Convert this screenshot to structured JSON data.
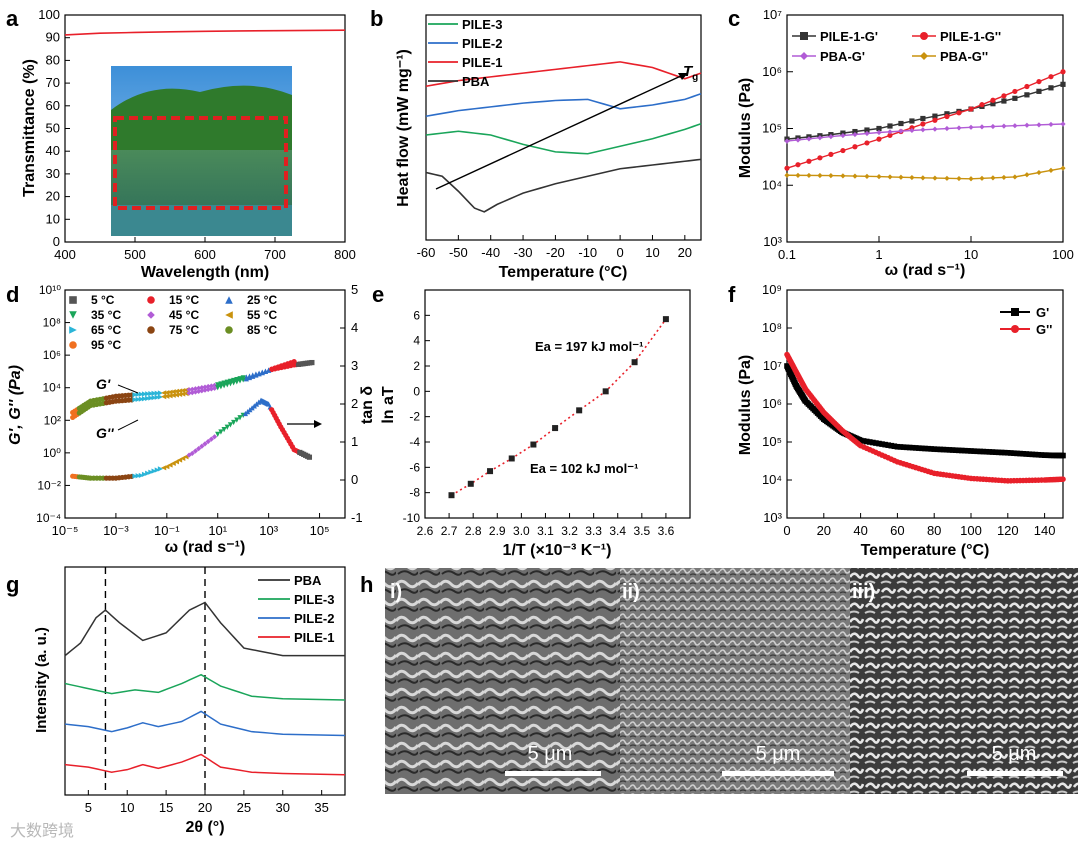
{
  "watermark": "大数跨境",
  "chart_data": [
    {
      "panel": "a",
      "type": "line",
      "xlabel": "Wavelength (nm)",
      "ylabel": "Transmittance (%)",
      "xlim": [
        400,
        800
      ],
      "ylim": [
        0,
        100
      ],
      "xticks": [
        "400",
        "500",
        "600",
        "700",
        "800"
      ],
      "yticks": [
        "0",
        "10",
        "20",
        "30",
        "40",
        "50",
        "60",
        "70",
        "80",
        "90",
        "100"
      ],
      "series": [
        {
          "name": "Transmittance",
          "color": "#e8202a",
          "x": [
            400,
            450,
            500,
            550,
            600,
            650,
            700,
            750,
            800
          ],
          "y": [
            91.2,
            92.0,
            92.3,
            92.6,
            92.8,
            93.0,
            93.1,
            93.2,
            93.3
          ]
        }
      ],
      "inset": "transparent film over landscape photo"
    },
    {
      "panel": "b",
      "type": "line",
      "xlabel": "Temperature (°C)",
      "ylabel": "Heat flow (mW mg⁻¹)",
      "xlim": [
        -60,
        25
      ],
      "xticks": [
        "-60",
        "-50",
        "-40",
        "-30",
        "-20",
        "-10",
        "0",
        "10",
        "20"
      ],
      "annotation": "Tg",
      "series": [
        {
          "name": "PILE-3",
          "color": "#1aa55a",
          "x": [
            -60,
            -50,
            -40,
            -30,
            -20,
            -10,
            0,
            10,
            20,
            25
          ],
          "y": [
            3.3,
            3.4,
            3.3,
            3.05,
            2.85,
            2.8,
            3.0,
            3.2,
            3.45,
            3.6
          ]
        },
        {
          "name": "PILE-2",
          "color": "#2d6ec9",
          "x": [
            -60,
            -50,
            -40,
            -30,
            -20,
            -10,
            0,
            10,
            20,
            25
          ],
          "y": [
            3.8,
            3.95,
            4.05,
            4.15,
            4.22,
            4.25,
            4.0,
            4.1,
            4.25,
            4.4
          ]
        },
        {
          "name": "PILE-1",
          "color": "#e8202a",
          "x": [
            -60,
            -50,
            -40,
            -30,
            -20,
            -10,
            0,
            10,
            20,
            25
          ],
          "y": [
            4.6,
            4.75,
            4.85,
            4.95,
            5.05,
            5.15,
            5.25,
            5.1,
            4.8,
            4.95
          ]
        },
        {
          "name": "PBA",
          "color": "#333333",
          "x": [
            -60,
            -55,
            -50,
            -45,
            -42,
            -38,
            -30,
            -20,
            -10,
            0,
            10,
            20,
            25
          ],
          "y": [
            2.3,
            2.2,
            1.8,
            1.35,
            1.25,
            1.45,
            1.75,
            2.0,
            2.2,
            2.4,
            2.5,
            2.6,
            2.65
          ]
        }
      ]
    },
    {
      "panel": "c",
      "type": "line",
      "xlabel": "ω (rad s⁻¹)",
      "ylabel": "Modulus (Pa)",
      "xscale": "log",
      "yscale": "log",
      "xlim": [
        0.1,
        100
      ],
      "ylim": [
        1000,
        10000000
      ],
      "xticks": [
        "0.1",
        "1",
        "10",
        "100"
      ],
      "yticks": [
        "10³",
        "10⁴",
        "10⁵",
        "10⁶",
        "10⁷"
      ],
      "series": [
        {
          "name": "PILE-1-G'",
          "color": "#333333",
          "marker": "square",
          "x": [
            0.1,
            0.3,
            1,
            3,
            10,
            30,
            100
          ],
          "y": [
            65000,
            78000,
            100000,
            150000,
            220000,
            340000,
            600000
          ]
        },
        {
          "name": "PILE-1-G''",
          "color": "#e8202a",
          "marker": "circle",
          "x": [
            0.1,
            0.3,
            1,
            3,
            10,
            30,
            100
          ],
          "y": [
            20000,
            35000,
            65000,
            120000,
            220000,
            450000,
            1000000
          ]
        },
        {
          "name": "PBA-G'",
          "color": "#b15cd6",
          "marker": "diamond",
          "x": [
            0.1,
            0.3,
            1,
            3,
            10,
            30,
            100
          ],
          "y": [
            60000,
            72000,
            85000,
            95000,
            105000,
            112000,
            120000
          ]
        },
        {
          "name": "PBA-G''",
          "color": "#c9920e",
          "marker": "diamond",
          "x": [
            0.1,
            0.3,
            1,
            3,
            10,
            30,
            100
          ],
          "y": [
            15000,
            14800,
            14200,
            13500,
            13000,
            14000,
            20000
          ]
        }
      ]
    },
    {
      "panel": "d",
      "type": "scatter",
      "xlabel": "ω (rad s⁻¹)",
      "ylabel": "G', G'' (Pa)",
      "y2label": "tan δ",
      "xscale": "log",
      "yscale": "log",
      "xlim": [
        1e-05,
        1000000
      ],
      "ylim": [
        0.0001,
        10000000000
      ],
      "y2lim": [
        -1,
        5
      ],
      "xticks": [
        "10⁻⁵",
        "10⁻³",
        "10⁻¹",
        "10¹",
        "10³",
        "10⁵"
      ],
      "yticks": [
        "10⁻⁴",
        "10⁻²",
        "10⁰",
        "10²",
        "10⁴",
        "10⁶",
        "10⁸",
        "10¹⁰"
      ],
      "y2ticks": [
        "-1",
        "0",
        "1",
        "2",
        "3",
        "4",
        "5"
      ],
      "legend": [
        {
          "label": "5 °C",
          "color": "#555555",
          "marker": "square"
        },
        {
          "label": "15 °C",
          "color": "#e8202a",
          "marker": "circle"
        },
        {
          "label": "25 °C",
          "color": "#2d6ec9",
          "marker": "triangle"
        },
        {
          "label": "35 °C",
          "color": "#1aa55a",
          "marker": "triangle-down"
        },
        {
          "label": "45 °C",
          "color": "#b15cd6",
          "marker": "diamond"
        },
        {
          "label": "55 °C",
          "color": "#c9920e",
          "marker": "triangle-left"
        },
        {
          "label": "65 °C",
          "color": "#2bb5d8",
          "marker": "triangle-right"
        },
        {
          "label": "75 °C",
          "color": "#8b4513",
          "marker": "circle"
        },
        {
          "label": "85 °C",
          "color": "#6b8e23",
          "marker": "star"
        },
        {
          "label": "95 °C",
          "color": "#f07020",
          "marker": "circle"
        }
      ],
      "labels": [
        "G'",
        "G''"
      ],
      "series": [
        {
          "name": "G'",
          "x": [
            2e-05,
            0.0001,
            0.001,
            0.01,
            0.1,
            1,
            10,
            100,
            1000,
            10000,
            50000
          ],
          "y": [
            300,
            1500,
            3000,
            4000,
            5000,
            8000,
            15000,
            40000,
            120000,
            250000,
            350000
          ]
        },
        {
          "name": "G''",
          "x": [
            2e-05,
            0.0001,
            0.001,
            0.01,
            0.1,
            1,
            10,
            100,
            1000,
            10000
          ],
          "y": [
            150,
            800,
            1500,
            2000,
            3000,
            5000,
            10000,
            30000,
            120000,
            400000
          ]
        },
        {
          "name": "tan δ",
          "axis": "y2",
          "x": [
            2e-05,
            0.0001,
            0.001,
            0.01,
            0.1,
            1,
            10,
            100,
            500,
            1000,
            3000,
            10000,
            40000
          ],
          "y": [
            0.1,
            0.05,
            0.05,
            0.12,
            0.35,
            0.7,
            1.2,
            1.7,
            2.1,
            2.0,
            1.4,
            0.8,
            0.6
          ]
        }
      ]
    },
    {
      "panel": "e",
      "type": "scatter",
      "xlabel": "1/T (×10⁻³ K⁻¹)",
      "ylabel": "ln aT",
      "xlim": [
        2.6,
        3.7
      ],
      "ylim": [
        -10,
        8
      ],
      "xticks": [
        "2.6",
        "2.7",
        "2.8",
        "2.9",
        "3.0",
        "3.1",
        "3.2",
        "3.3",
        "3.4",
        "3.5",
        "3.6"
      ],
      "yticks": [
        "-10",
        "-8",
        "-6",
        "-4",
        "-2",
        "0",
        "2",
        "4",
        "6"
      ],
      "annotations": [
        "Ea = 197 kJ mol⁻¹",
        "Ea = 102 kJ mol⁻¹"
      ],
      "series": [
        {
          "name": "ln aT",
          "color": "#222222",
          "fit_color": "#e8202a",
          "x": [
            2.71,
            2.79,
            2.87,
            2.96,
            3.05,
            3.14,
            3.24,
            3.35,
            3.47,
            3.6
          ],
          "y": [
            -8.2,
            -7.3,
            -6.3,
            -5.3,
            -4.2,
            -2.9,
            -1.5,
            0.0,
            2.3,
            5.7
          ]
        }
      ]
    },
    {
      "panel": "f",
      "type": "line",
      "xlabel": "Temperature (°C)",
      "ylabel": "Modulus (Pa)",
      "yscale": "log",
      "xlim": [
        0,
        150
      ],
      "ylim": [
        1000,
        1000000000
      ],
      "xticks": [
        "0",
        "20",
        "40",
        "60",
        "80",
        "100",
        "120",
        "140"
      ],
      "yticks": [
        "10³",
        "10⁴",
        "10⁵",
        "10⁶",
        "10⁷",
        "10⁸",
        "10⁹"
      ],
      "series": [
        {
          "name": "G'",
          "color": "#000000",
          "marker": "square",
          "x": [
            0,
            5,
            10,
            20,
            30,
            40,
            60,
            80,
            100,
            120,
            140,
            150
          ],
          "y": [
            10000000,
            3000000,
            1200000,
            400000,
            180000,
            110000,
            75000,
            65000,
            58000,
            52000,
            45000,
            44000
          ]
        },
        {
          "name": "G''",
          "color": "#e8202a",
          "marker": "circle",
          "x": [
            0,
            5,
            10,
            20,
            30,
            40,
            60,
            80,
            100,
            120,
            140,
            150
          ],
          "y": [
            20000000,
            7000000,
            2500000,
            600000,
            200000,
            80000,
            30000,
            15000,
            11000,
            9500,
            10000,
            10500
          ]
        }
      ]
    },
    {
      "panel": "g",
      "type": "line",
      "xlabel": "2θ (°)",
      "ylabel": "Intensity (a. u.)",
      "xlim": [
        2,
        38
      ],
      "xticks": [
        "5",
        "10",
        "15",
        "20",
        "25",
        "30",
        "35"
      ],
      "reference_lines": [
        7.2,
        20.0
      ],
      "series": [
        {
          "name": "PBA",
          "color": "#333333",
          "x": [
            2,
            4,
            6,
            7.2,
            9,
            12,
            15,
            18,
            20,
            22,
            25,
            30,
            38
          ],
          "y": [
            5.5,
            6.0,
            7.0,
            7.3,
            6.8,
            6.1,
            6.4,
            7.3,
            7.6,
            6.8,
            5.8,
            5.5,
            5.5
          ]
        },
        {
          "name": "PILE-3",
          "color": "#1aa55a",
          "x": [
            2,
            5,
            8,
            11,
            14,
            17,
            19.5,
            22,
            26,
            30,
            38
          ],
          "y": [
            4.4,
            4.2,
            4.0,
            4.15,
            4.05,
            4.4,
            4.75,
            4.3,
            3.9,
            3.8,
            3.75
          ]
        },
        {
          "name": "PILE-2",
          "color": "#2d6ec9",
          "x": [
            2,
            5,
            8,
            10,
            12,
            14,
            17,
            19.5,
            22,
            26,
            30,
            38
          ],
          "y": [
            2.8,
            2.7,
            2.5,
            2.65,
            2.85,
            2.7,
            2.9,
            3.3,
            2.8,
            2.5,
            2.4,
            2.35
          ]
        },
        {
          "name": "PILE-1",
          "color": "#e8202a",
          "x": [
            2,
            5,
            8,
            10,
            12,
            14,
            17,
            19.5,
            22,
            26,
            30,
            38
          ],
          "y": [
            1.2,
            1.1,
            0.9,
            1.0,
            1.2,
            1.05,
            1.3,
            1.6,
            1.1,
            0.9,
            0.85,
            0.8
          ]
        }
      ]
    },
    {
      "panel": "h",
      "type": "image",
      "subpanels": [
        "i)",
        "ii)",
        "iii)"
      ],
      "scale_bars": [
        "5 μm",
        "5 μm",
        "5 μm"
      ]
    }
  ]
}
